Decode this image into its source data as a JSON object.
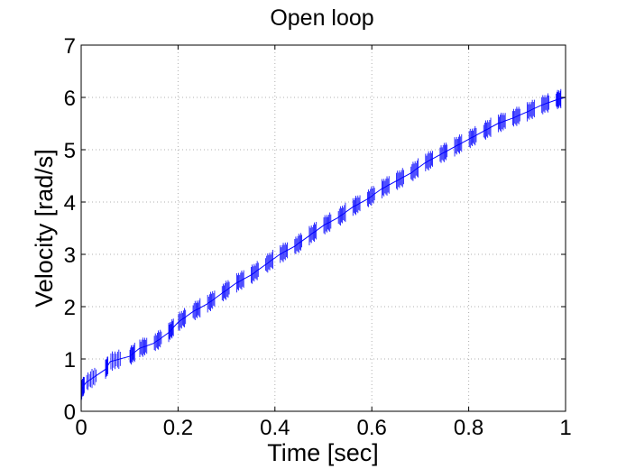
{
  "chart_data": {
    "type": "line",
    "title": "Open loop",
    "xlabel": "Time [sec]",
    "ylabel": "Velocity [rad/s]",
    "xlim": [
      0,
      1
    ],
    "ylim": [
      0,
      7
    ],
    "x_ticks": [
      0,
      0.2,
      0.4,
      0.6,
      0.8,
      1
    ],
    "x_tick_labels": [
      "0",
      "0.2",
      "0.4",
      "0.6",
      "0.8",
      "1"
    ],
    "y_ticks": [
      0,
      1,
      2,
      3,
      4,
      5,
      6,
      7
    ],
    "y_tick_labels": [
      "0",
      "1",
      "2",
      "3",
      "4",
      "5",
      "6",
      "7"
    ],
    "grid": true,
    "line_color": "#0000ff",
    "series": [
      {
        "x": [
          0.0,
          0.0025,
          0.01,
          0.05,
          0.06,
          0.1,
          0.12,
          0.15,
          0.18,
          0.2,
          0.23,
          0.26,
          0.29,
          0.32,
          0.35,
          0.38,
          0.41,
          0.44,
          0.47,
          0.5,
          0.53,
          0.56,
          0.59,
          0.62,
          0.65,
          0.68,
          0.71,
          0.74,
          0.77,
          0.8,
          0.83,
          0.86,
          0.89,
          0.92,
          0.95,
          0.98,
          1.0
        ],
        "y": [
          0.38,
          0.45,
          0.55,
          0.8,
          0.95,
          1.05,
          1.2,
          1.3,
          1.5,
          1.7,
          1.9,
          2.05,
          2.25,
          2.45,
          2.6,
          2.8,
          3.0,
          3.15,
          3.35,
          3.55,
          3.7,
          3.9,
          4.05,
          4.25,
          4.4,
          4.55,
          4.75,
          4.9,
          5.05,
          5.2,
          5.35,
          5.5,
          5.6,
          5.72,
          5.85,
          5.95,
          6.0
        ]
      }
    ]
  }
}
